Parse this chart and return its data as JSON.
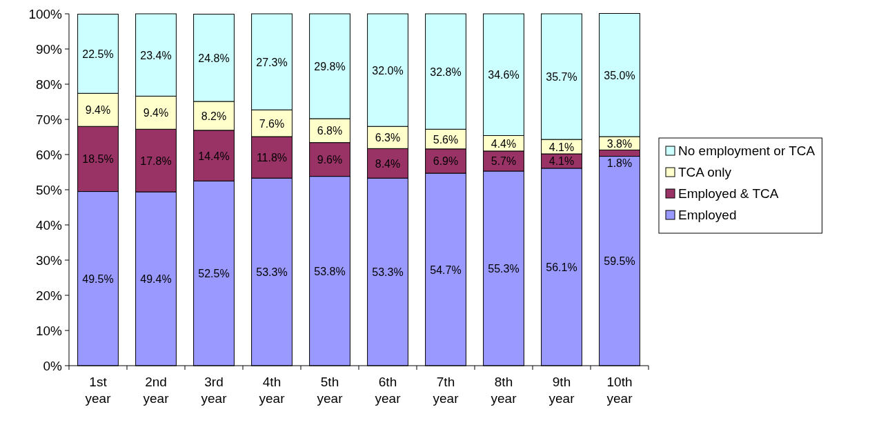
{
  "chart_data": {
    "type": "bar",
    "stacked": true,
    "categories": [
      "1st year",
      "2nd year",
      "3rd year",
      "4th year",
      "5th year",
      "6th year",
      "7th year",
      "8th year",
      "9th year",
      "10th year"
    ],
    "ylim": [
      0,
      100
    ],
    "yticks": [
      {
        "value": 0,
        "label": "0%"
      },
      {
        "value": 10,
        "label": "10%"
      },
      {
        "value": 20,
        "label": "20%"
      },
      {
        "value": 30,
        "label": "30%"
      },
      {
        "value": 40,
        "label": "40%"
      },
      {
        "value": 50,
        "label": "50%"
      },
      {
        "value": 60,
        "label": "60%"
      },
      {
        "value": 70,
        "label": "70%"
      },
      {
        "value": 80,
        "label": "80%"
      },
      {
        "value": 90,
        "label": "90%"
      },
      {
        "value": 100,
        "label": "100%"
      }
    ],
    "legend": "right",
    "series": [
      {
        "name": "Employed",
        "color": "#9999ff",
        "values": [
          49.5,
          49.4,
          52.5,
          53.3,
          53.8,
          53.3,
          54.7,
          55.3,
          56.1,
          59.5
        ],
        "value_labels": [
          "49.5%",
          "49.4%",
          "52.5%",
          "53.3%",
          "53.8%",
          "53.3%",
          "54.7%",
          "55.3%",
          "56.1%",
          "59.5%"
        ]
      },
      {
        "name": "Employed & TCA",
        "color": "#993366",
        "values": [
          18.5,
          17.8,
          14.4,
          11.8,
          9.6,
          8.4,
          6.9,
          5.7,
          4.1,
          1.8
        ],
        "value_labels": [
          "18.5%",
          "17.8%",
          "14.4%",
          "11.8%",
          "9.6%",
          "8.4%",
          "6.9%",
          "5.7%",
          "4.1%",
          "1.8%"
        ]
      },
      {
        "name": "TCA only",
        "color": "#ffffcc",
        "values": [
          9.4,
          9.4,
          8.2,
          7.6,
          6.8,
          6.3,
          5.6,
          4.4,
          4.1,
          3.8
        ],
        "value_labels": [
          "9.4%",
          "9.4%",
          "8.2%",
          "7.6%",
          "6.8%",
          "6.3%",
          "5.6%",
          "4.4%",
          "4.1%",
          "3.8%"
        ]
      },
      {
        "name": "No employment or TCA",
        "color": "#ccffff",
        "values": [
          22.5,
          23.4,
          24.8,
          27.3,
          29.8,
          32.0,
          32.8,
          34.6,
          35.7,
          35.0
        ],
        "value_labels": [
          "22.5%",
          "23.4%",
          "24.8%",
          "27.3%",
          "29.8%",
          "32.0%",
          "32.8%",
          "34.6%",
          "35.7%",
          "35.0%"
        ]
      }
    ]
  }
}
